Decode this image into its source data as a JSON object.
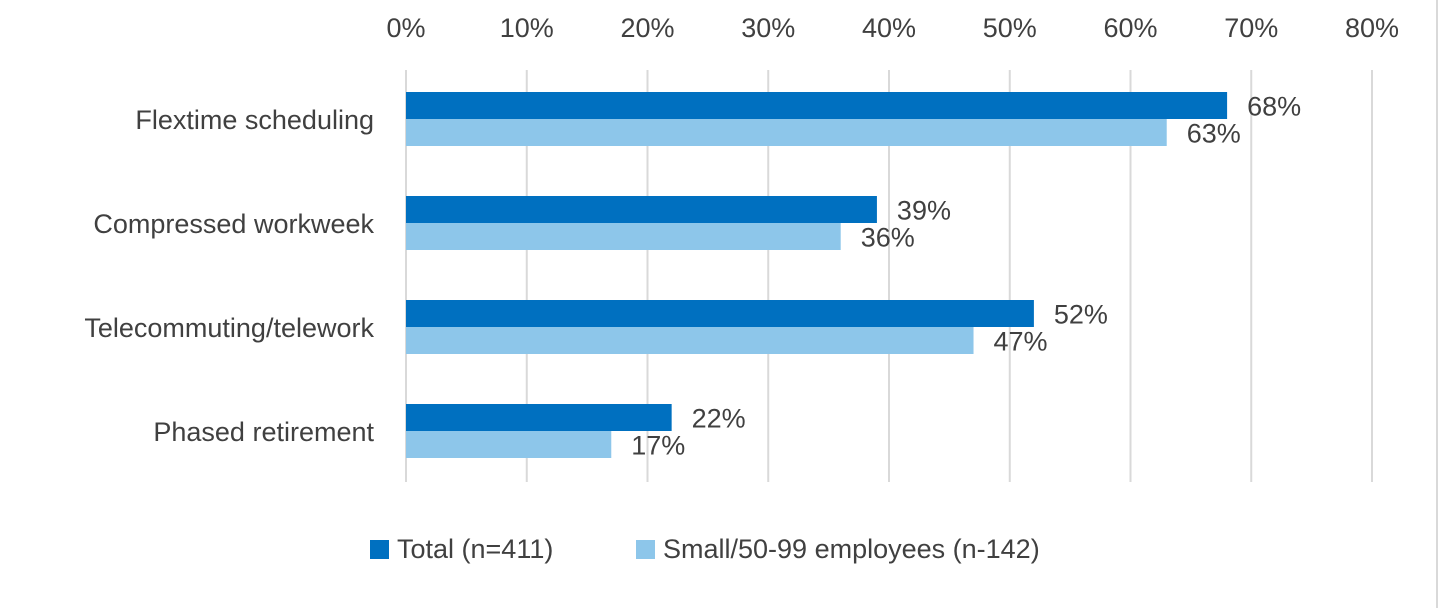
{
  "chart_data": {
    "type": "bar",
    "orientation": "horizontal",
    "categories": [
      "Flextime scheduling",
      "Compressed workweek",
      "Telecommuting/telework",
      "Phased retirement"
    ],
    "series": [
      {
        "name": "Total (n=411)",
        "values": [
          68,
          39,
          52,
          22
        ],
        "color": "#0070c0"
      },
      {
        "name": "Small/50-99 employees (n-142)",
        "values": [
          63,
          36,
          47,
          17
        ],
        "color": "#8dc6ea"
      }
    ],
    "data_labels": [
      [
        "68%",
        "39%",
        "52%",
        "22%"
      ],
      [
        "63%",
        "36%",
        "47%",
        "17%"
      ]
    ],
    "x_ticks": [
      "0%",
      "10%",
      "20%",
      "30%",
      "40%",
      "50%",
      "60%",
      "70%",
      "80%"
    ],
    "xlim": [
      0,
      80
    ],
    "x_axis_position": "top",
    "grid": true,
    "legend_position": "bottom",
    "title": "",
    "xlabel": "",
    "ylabel": ""
  }
}
